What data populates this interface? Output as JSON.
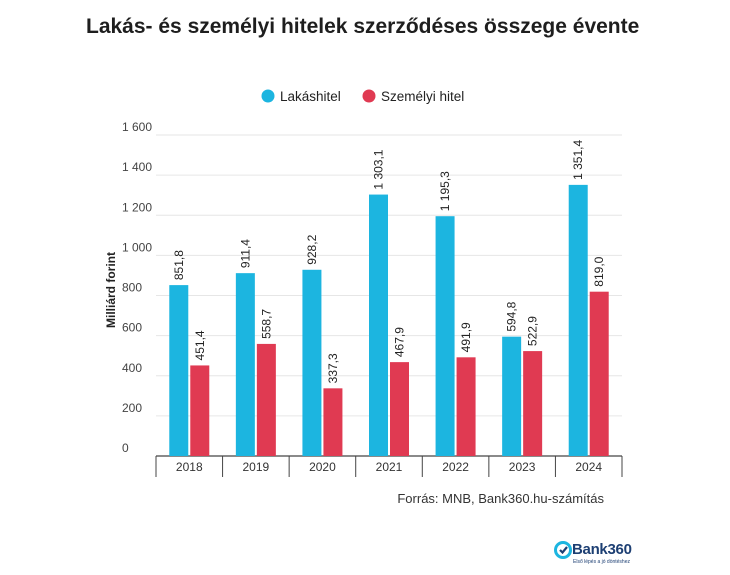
{
  "chart_data": {
    "type": "bar",
    "title": "Lakás- és személyi hitelek szerződéses összege évente",
    "ylabel": "Milliárd forint",
    "xlabel": "",
    "categories": [
      "2018",
      "2019",
      "2020",
      "2021",
      "2022",
      "2023",
      "2024"
    ],
    "series": [
      {
        "name": "Lakáshitel",
        "color": "#1cb5e0",
        "values": [
          851.8,
          911.4,
          928.2,
          1303.1,
          1195.3,
          594.8,
          1351.4
        ],
        "labels": [
          "851,8",
          "911,4",
          "928,2",
          "1 303,1",
          "1 195,3",
          "594,8",
          "1 351,4"
        ]
      },
      {
        "name": "Személyi hitel",
        "color": "#e03a52",
        "values": [
          451.4,
          558.7,
          337.3,
          467.9,
          491.9,
          522.9,
          819.0
        ],
        "labels": [
          "451,4",
          "558,7",
          "337,3",
          "467,9",
          "491,9",
          "522,9",
          "819,0"
        ]
      }
    ],
    "ylim": [
      0,
      1600
    ],
    "yticks": [
      0,
      200,
      400,
      600,
      800,
      1000,
      1200,
      1400,
      1600
    ],
    "ytick_labels": [
      "0",
      "200",
      "400",
      "600",
      "800",
      "1 000",
      "1 200",
      "1 400",
      "1 600"
    ],
    "grid": true,
    "legend_position": "top-center"
  },
  "source": "Forrás: MNB, Bank360.hu-számítás",
  "brand": {
    "name": "Bank360",
    "tagline": "Első lépés a jó döntéshez",
    "color": "#1d3f73",
    "accent": "#1cb5e0"
  }
}
